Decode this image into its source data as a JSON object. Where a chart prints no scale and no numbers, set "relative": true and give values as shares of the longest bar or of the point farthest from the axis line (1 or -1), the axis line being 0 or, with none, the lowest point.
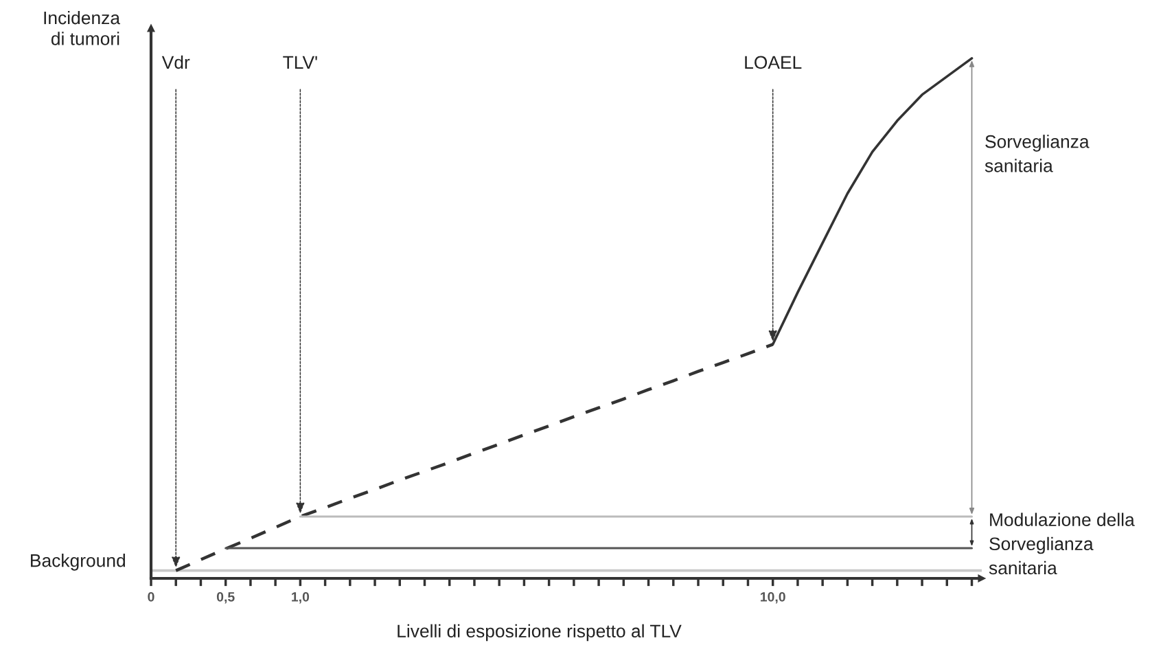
{
  "chart_data": {
    "type": "line",
    "relative": true,
    "xlabel": "Livelli di esposizione rispetto al TLV",
    "ylabel": "Incidenza\ndi tumori",
    "categories": [
      "0",
      null,
      null,
      "0,5",
      null,
      null,
      "1,0",
      null,
      null,
      null,
      null,
      null,
      null,
      null,
      null,
      null,
      null,
      null,
      null,
      null,
      null,
      null,
      null,
      null,
      null,
      "10,0",
      null,
      null,
      null,
      null,
      null,
      null,
      null,
      null
    ],
    "series": [
      {
        "color": "#333333",
        "line_style": "dashed",
        "values": [
          null,
          0.015,
          0.036,
          0.057,
          0.077,
          0.098,
          0.119,
          0.136,
          0.154,
          0.171,
          0.189,
          0.206,
          0.223,
          0.241,
          0.258,
          0.276,
          0.293,
          0.311,
          0.328,
          0.345,
          0.363,
          0.38,
          0.398,
          0.415,
          0.432,
          0.45,
          null,
          null,
          null,
          null,
          null,
          null,
          null,
          null
        ]
      },
      {
        "color": "#333333",
        "line_style": "solid",
        "values": [
          null,
          null,
          null,
          null,
          null,
          null,
          null,
          null,
          null,
          null,
          null,
          null,
          null,
          null,
          null,
          null,
          null,
          null,
          null,
          null,
          null,
          null,
          null,
          null,
          null,
          0.45,
          0.55,
          0.645,
          0.74,
          0.82,
          0.88,
          0.93,
          0.965,
          1.0
        ]
      },
      {
        "color": "#555555",
        "line_style": "solid",
        "values": [
          null,
          null,
          null,
          0.058,
          0.058,
          0.058,
          0.058,
          0.058,
          0.058,
          0.058,
          0.058,
          0.058,
          0.058,
          0.058,
          0.058,
          0.058,
          0.058,
          0.058,
          0.058,
          0.058,
          0.058,
          0.058,
          0.058,
          0.058,
          0.058,
          0.058,
          0.058,
          0.058,
          0.058,
          0.058,
          0.058,
          0.058,
          0.058,
          0.058
        ]
      },
      {
        "color": "#bbbbbb",
        "line_style": "solid",
        "values": [
          null,
          null,
          null,
          null,
          null,
          null,
          0.119,
          0.119,
          0.119,
          0.119,
          0.119,
          0.119,
          0.119,
          0.119,
          0.119,
          0.119,
          0.119,
          0.119,
          0.119,
          0.119,
          0.119,
          0.119,
          0.119,
          0.119,
          0.119,
          0.119,
          0.119,
          0.119,
          0.119,
          0.119,
          0.119,
          0.119,
          0.119,
          0.119
        ]
      }
    ],
    "ref_lines": [
      {
        "axis": "y",
        "value": 0.015,
        "label": "Background",
        "color": "#c8c8c8"
      }
    ],
    "annotations": [
      {
        "text": "Vdr",
        "y": 0.015
      },
      {
        "text": "TLV'",
        "x": "1,0",
        "y": 0.119
      },
      {
        "text": "LOAEL",
        "x": "10,0",
        "y": 0.45
      },
      "Sorveglianza\nsanitaria",
      "Modulazione della\nSorveglianza\nsanitaria"
    ]
  }
}
